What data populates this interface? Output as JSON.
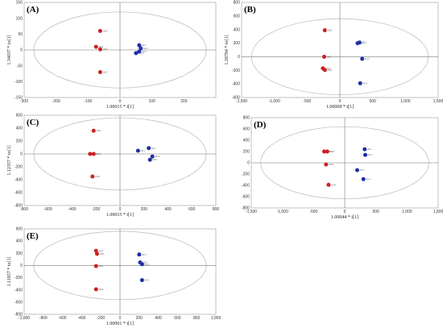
{
  "colors": {
    "group1": "#cc2020",
    "group2": "#1f2fa8"
  },
  "chart_data": [
    {
      "type": "scatter",
      "panel": "(A)",
      "xlabel": "1.00015 * t[1]",
      "ylabel": "1.34037 * to[1]",
      "xlim": [
        -300,
        300
      ],
      "ylim": [
        -150,
        150
      ],
      "xticks": [
        "-300",
        "-200",
        "-100",
        "0",
        "100",
        "200"
      ],
      "yticks": [
        "-150",
        "-100",
        "-50",
        "0",
        "50",
        "100",
        "150"
      ],
      "series": [
        {
          "color": "group1",
          "points": [
            {
              "x": -62,
              "y": 60,
              "label": "1003"
            },
            {
              "x": -75,
              "y": 10,
              "label": "1001"
            },
            {
              "x": -62,
              "y": 2,
              "label": "1004"
            },
            {
              "x": -62,
              "y": -70,
              "label": "1002"
            }
          ]
        },
        {
          "color": "group2",
          "points": [
            {
              "x": 60,
              "y": 15,
              "label": "AD 1"
            },
            {
              "x": 65,
              "y": 5,
              "label": "AD 2"
            },
            {
              "x": 50,
              "y": -10,
              "label": "AD 3"
            },
            {
              "x": 60,
              "y": -5,
              "label": "AD 4"
            }
          ]
        }
      ]
    },
    {
      "type": "scatter",
      "panel": "(B)",
      "xlabel": "1.00008 * t[1]",
      "ylabel": "1.28784 * to[1]",
      "xlim": [
        -1500,
        1500
      ],
      "ylim": [
        -600,
        800
      ],
      "xticks": [
        "-1,500",
        "-1,000",
        "-500",
        "0",
        "500",
        "1,000",
        "1,500"
      ],
      "yticks": [
        "-600",
        "-400",
        "-200",
        "0",
        "200",
        "400",
        "600",
        "800"
      ],
      "series": [
        {
          "color": "group1",
          "points": [
            {
              "x": -230,
              "y": 390,
              "label": "1002"
            },
            {
              "x": -240,
              "y": 0,
              "label": "1001"
            },
            {
              "x": -260,
              "y": -170,
              "label": "1004"
            },
            {
              "x": -230,
              "y": -195,
              "label": "1003"
            }
          ]
        },
        {
          "color": "group2",
          "points": [
            {
              "x": 270,
              "y": 200,
              "label": "AD 1"
            },
            {
              "x": 300,
              "y": 210,
              "label": "AD 2"
            },
            {
              "x": 340,
              "y": -30,
              "label": "AD 3"
            },
            {
              "x": 310,
              "y": -390,
              "label": "AD 4"
            }
          ]
        }
      ]
    },
    {
      "type": "scatter",
      "panel": "(C)",
      "xlabel": "1.00015 * t[1]",
      "ylabel": "1.12357 * to[1]",
      "xlim": [
        -800,
        800
      ],
      "ylim": [
        -800,
        600
      ],
      "xticks": [
        "-800",
        "-600",
        "-400",
        "-200",
        "0",
        "200",
        "400",
        "600",
        "800"
      ],
      "yticks": [
        "-800",
        "-600",
        "-400",
        "-200",
        "0",
        "200",
        "400",
        "600"
      ],
      "series": [
        {
          "color": "group1",
          "points": [
            {
              "x": -220,
              "y": 360,
              "label": "1001"
            },
            {
              "x": -250,
              "y": 0,
              "label": "1002"
            },
            {
              "x": -220,
              "y": 0,
              "label": "1003"
            },
            {
              "x": -230,
              "y": -350,
              "label": "1004"
            }
          ]
        },
        {
          "color": "group2",
          "points": [
            {
              "x": 150,
              "y": 50,
              "label": "AD 1"
            },
            {
              "x": 240,
              "y": 90,
              "label": "AD 2"
            },
            {
              "x": 270,
              "y": -40,
              "label": "AD 3"
            },
            {
              "x": 250,
              "y": -90,
              "label": "AD 4"
            }
          ]
        }
      ]
    },
    {
      "type": "scatter",
      "panel": "(D)",
      "xlabel": "1.00044 * t[1]",
      "ylabel": "",
      "xlim": [
        -1500,
        1500
      ],
      "ylim": [
        -800,
        800
      ],
      "xticks": [
        "-1,500",
        "-1,000",
        "-500",
        "0",
        "500",
        "1,000",
        "1,500"
      ],
      "yticks": [
        "-800",
        "-600",
        "-400",
        "-200",
        "0",
        "200",
        "400",
        "600",
        "800"
      ],
      "series": [
        {
          "color": "group1",
          "points": [
            {
              "x": -330,
              "y": 200,
              "label": "1001"
            },
            {
              "x": -280,
              "y": 200,
              "label": "1002"
            },
            {
              "x": -300,
              "y": -30,
              "label": "1003"
            },
            {
              "x": -260,
              "y": -390,
              "label": "1004"
            }
          ]
        },
        {
          "color": "group2",
          "points": [
            {
              "x": 320,
              "y": 240,
              "label": "AD 1"
            },
            {
              "x": 330,
              "y": 140,
              "label": "AD 2"
            },
            {
              "x": 200,
              "y": -130,
              "label": "AD 3"
            },
            {
              "x": 300,
              "y": -290,
              "label": "AD 4"
            }
          ]
        }
      ]
    },
    {
      "type": "scatter",
      "panel": "(E)",
      "xlabel": "1.00001 * t[1]",
      "ylabel": "1.11857 * to[1]",
      "xlim": [
        -1000,
        1000
      ],
      "ylim": [
        -800,
        600
      ],
      "xticks": [
        "-1,000",
        "-800",
        "-600",
        "-400",
        "-200",
        "0",
        "200",
        "400",
        "600",
        "800",
        "1,000"
      ],
      "yticks": [
        "-800",
        "-600",
        "-400",
        "-200",
        "0",
        "200",
        "400",
        "600"
      ],
      "series": [
        {
          "color": "group1",
          "points": [
            {
              "x": -250,
              "y": 240,
              "label": "1001"
            },
            {
              "x": -240,
              "y": 190,
              "label": "1002"
            },
            {
              "x": -250,
              "y": -10,
              "label": "1003"
            },
            {
              "x": -250,
              "y": -390,
              "label": "1004"
            }
          ]
        },
        {
          "color": "group2",
          "points": [
            {
              "x": 200,
              "y": 180,
              "label": "AD 1"
            },
            {
              "x": 210,
              "y": 50,
              "label": "AD 2"
            },
            {
              "x": 230,
              "y": 20,
              "label": "AD 3"
            },
            {
              "x": 230,
              "y": -240,
              "label": "AD 4"
            }
          ]
        }
      ]
    }
  ]
}
